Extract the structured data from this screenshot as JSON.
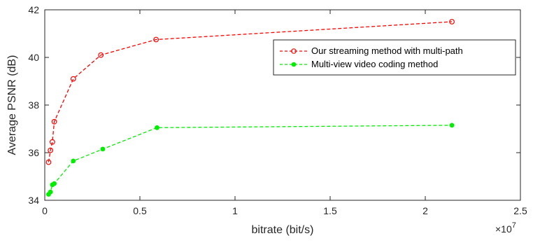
{
  "chart_data": {
    "type": "line",
    "xlabel": "bitrate (bit/s)",
    "ylabel": "Average PSNR (dB)",
    "x_exponent_base": "×10",
    "x_exponent_power": "7",
    "xlim": [
      0,
      2.5
    ],
    "ylim": [
      34,
      42
    ],
    "x_ticks": [
      0,
      0.5,
      1,
      1.5,
      2,
      2.5
    ],
    "x_tick_labels": [
      "0",
      "0.5",
      "1",
      "1.5",
      "2",
      "2.5"
    ],
    "y_ticks": [
      34,
      36,
      38,
      40,
      42
    ],
    "y_tick_labels": [
      "34",
      "36",
      "38",
      "40",
      "42"
    ],
    "x_scale_note": "x values in units of 10^7 bit/s",
    "grid": false,
    "legend_position": "upper-right",
    "series": [
      {
        "name": "Our streaming method with multi-path",
        "color": "#ff0000",
        "marker": "open-circle",
        "x": [
          0.02,
          0.03,
          0.04,
          0.05,
          0.15,
          0.295,
          0.585,
          2.14
        ],
        "y": [
          35.6,
          36.1,
          36.45,
          37.3,
          39.1,
          40.1,
          40.75,
          41.5
        ]
      },
      {
        "name": "Multi-view video coding method",
        "color": "#00ee00",
        "marker": "filled-circle",
        "x": [
          0.02,
          0.03,
          0.04,
          0.05,
          0.15,
          0.305,
          0.59,
          2.14
        ],
        "y": [
          34.25,
          34.35,
          34.65,
          34.7,
          35.65,
          36.15,
          37.05,
          37.15
        ]
      }
    ]
  }
}
